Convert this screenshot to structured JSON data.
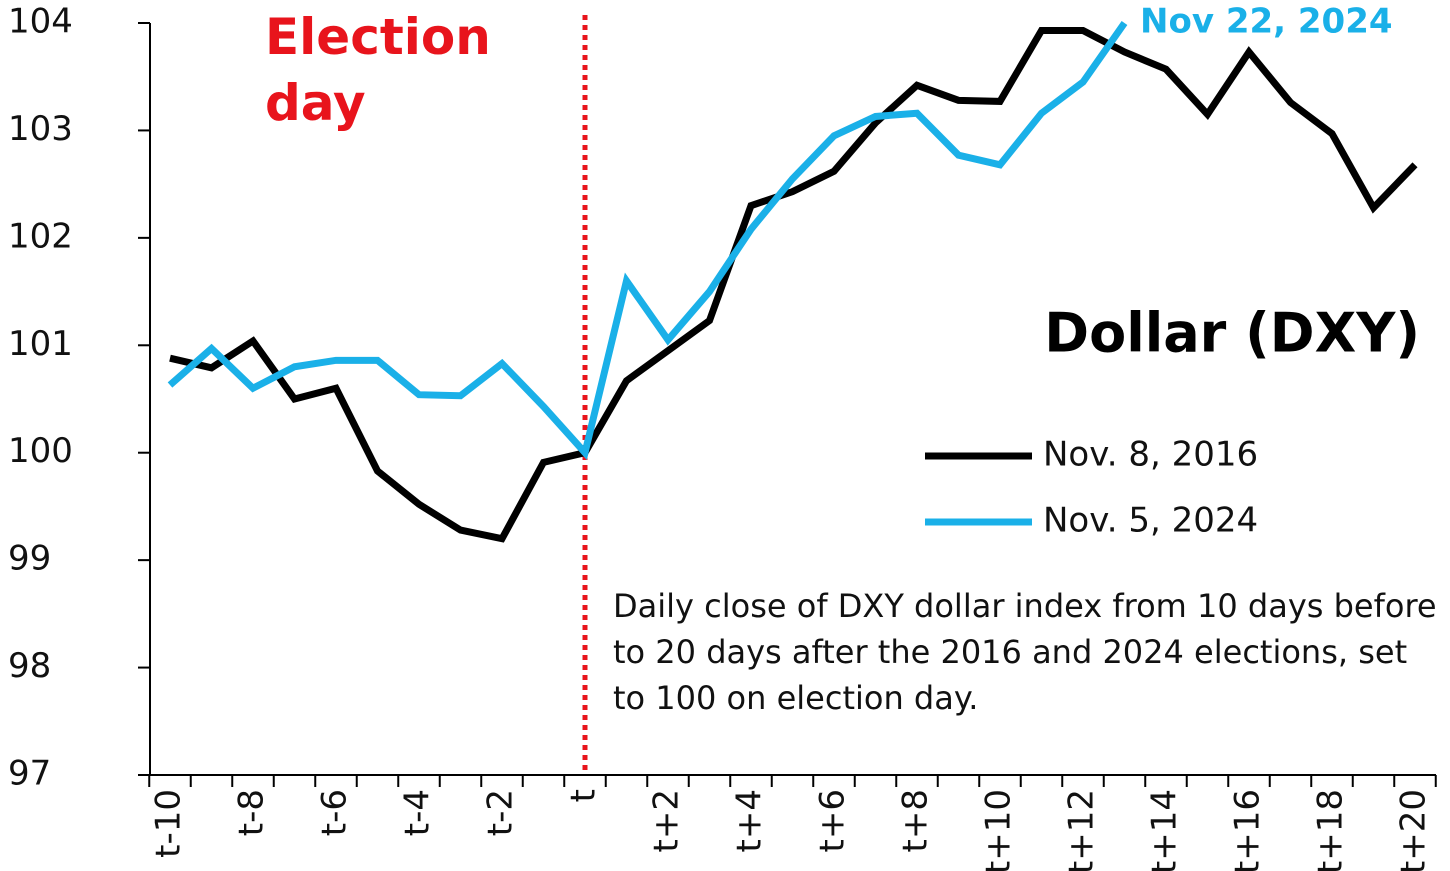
{
  "chart_data": {
    "type": "line",
    "title": "Dollar (DXY)",
    "annotations": [
      "Election day",
      "Nov 22, 2024"
    ],
    "note": "Daily close of DXY dollar index from 10 days before to 20 days after the 2016 and 2024 elections, set to 100 on election day.",
    "categories": [
      "t-10",
      null,
      "t-8",
      null,
      "t-6",
      null,
      "t-4",
      null,
      "t-2",
      null,
      "t",
      null,
      "t+2",
      null,
      "t+4",
      null,
      "t+6",
      null,
      "t+8",
      null,
      "t+10",
      null,
      "t+12",
      null,
      "t+14",
      null,
      "t+16",
      null,
      "t+18",
      null,
      "t+20"
    ],
    "series": [
      {
        "name": "Nov. 8, 2016",
        "color": "#000000",
        "values": [
          100.88,
          100.79,
          101.04,
          100.5,
          100.6,
          99.83,
          99.52,
          99.28,
          99.2,
          99.91,
          100.0,
          100.67,
          100.95,
          101.23,
          102.3,
          102.43,
          102.62,
          103.07,
          103.42,
          103.28,
          103.27,
          103.93,
          103.93,
          103.73,
          103.57,
          103.15,
          103.73,
          103.26,
          102.97,
          102.28,
          102.68
        ]
      },
      {
        "name": "Nov. 5, 2024",
        "color": "#1ab0e8",
        "values": [
          100.63,
          100.97,
          100.6,
          100.8,
          100.86,
          100.86,
          100.54,
          100.53,
          100.83,
          100.43,
          100.0,
          101.6,
          101.05,
          101.5,
          102.08,
          102.55,
          102.95,
          103.13,
          103.16,
          102.77,
          102.68,
          103.16,
          103.45,
          104.0,
          null,
          null,
          null,
          null,
          null,
          null,
          null
        ]
      }
    ],
    "ylim": [
      97,
      104
    ],
    "yticks": [
      97,
      98,
      99,
      100,
      101,
      102,
      103,
      104
    ],
    "grid": false
  }
}
